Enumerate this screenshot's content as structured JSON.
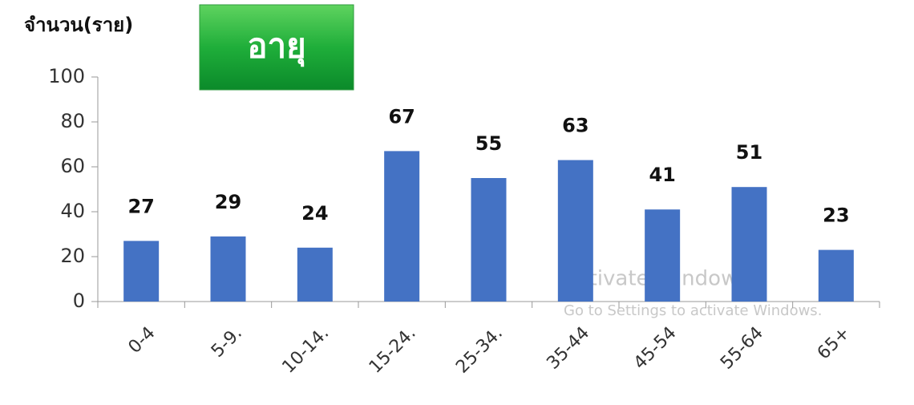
{
  "chart_data": {
    "type": "bar",
    "y_axis_label": "จำนวน(ราย)",
    "badge": "อายุ",
    "categories": [
      "0-4",
      "5-9.",
      "10-14.",
      "15-24.",
      "25-34.",
      "35-44",
      "45-54",
      "55-64",
      "65+"
    ],
    "values": [
      27,
      29,
      24,
      67,
      55,
      63,
      41,
      51,
      23
    ],
    "color": "#4472c4",
    "ylim": [
      0,
      100
    ],
    "yticks": [
      0,
      20,
      40,
      60,
      80,
      100
    ],
    "grid": false
  },
  "watermark": {
    "title": "Activate Windows",
    "subtitle": "Go to Settings to activate Windows."
  }
}
